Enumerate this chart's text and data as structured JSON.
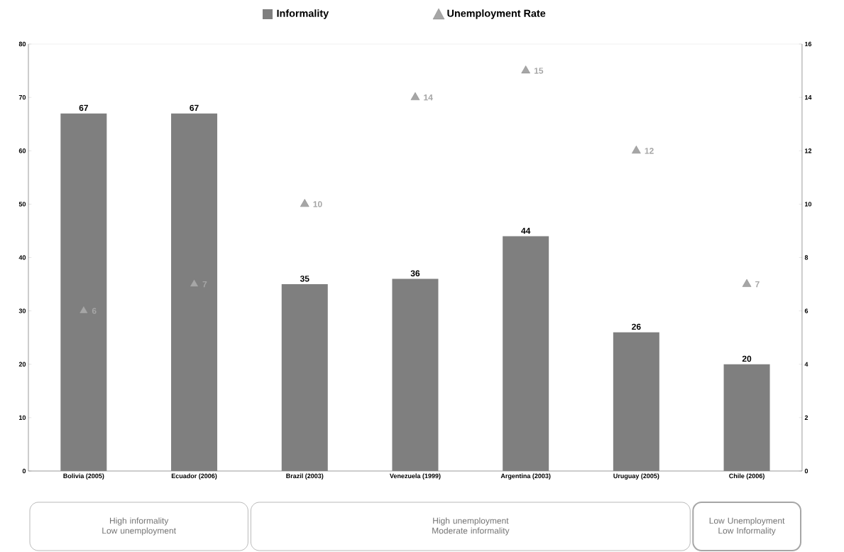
{
  "chart_data": {
    "type": "bar",
    "categories": [
      "Bolivia (2005)",
      "Ecuador (2006)",
      "Brazil (2003)",
      "Venezuela (1999)",
      "Argentina (2003)",
      "Uruguay (2005)",
      "Chile (2006)"
    ],
    "series": [
      {
        "name": "Informality",
        "color": "#7f7f7f",
        "values": [
          67,
          67,
          35,
          36,
          44,
          26,
          20
        ]
      },
      {
        "name": "Unemployment Rate",
        "type": "scatter",
        "axis": "y2",
        "color": "#a6a6a6",
        "marker": "triangle",
        "values": [
          6,
          7,
          10,
          14,
          15,
          12,
          7
        ]
      }
    ],
    "ylim": [
      0,
      80
    ],
    "yticks": [
      0,
      10,
      20,
      30,
      40,
      50,
      60,
      70,
      80
    ],
    "y2lim": [
      0,
      16
    ],
    "y2ticks": [
      0,
      2,
      4,
      6,
      8,
      10,
      12,
      14,
      16
    ],
    "data_labels": true,
    "legend": "top",
    "annotations": [
      "High informality Low unemployment",
      "High unemployment Moderate informality",
      "Low Unemployment Low Informality"
    ]
  }
}
